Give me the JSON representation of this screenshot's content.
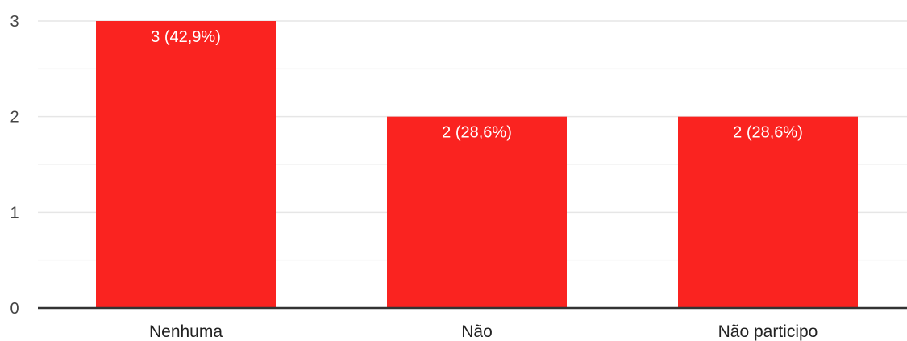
{
  "chart_data": {
    "type": "bar",
    "categories": [
      "Nenhuma",
      "Não",
      "Não participo"
    ],
    "values": [
      3,
      2,
      2
    ],
    "data_labels": [
      "3 (42,9%)",
      "2 (28,6%)",
      "2 (28,6%)"
    ],
    "y_ticks": [
      "0",
      "1",
      "2",
      "3"
    ],
    "ylim": [
      0,
      3
    ],
    "minor_gridlines": [
      0.5,
      1.5,
      2.5
    ],
    "grid": true,
    "legend": "none",
    "bar_color": "#fa2320",
    "title": "",
    "xlabel": "",
    "ylabel": ""
  }
}
